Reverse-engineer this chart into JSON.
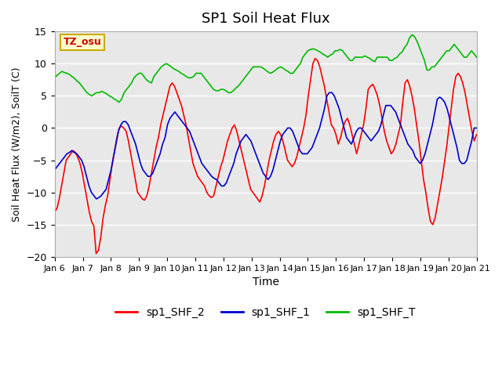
{
  "title": "SP1 Soil Heat Flux",
  "xlabel": "Time",
  "ylabel": "Soil Heat Flux (W/m2), SoilT (C)",
  "ylim": [
    -20,
    15
  ],
  "xlim": [
    0,
    15
  ],
  "background_color": "#ffffff",
  "plot_bg_color": "#e8e8e8",
  "grid_color": "#ffffff",
  "tz_label": "TZ_osu",
  "tz_bg": "#ffffcc",
  "tz_border": "#ccaa00",
  "tz_text_color": "#cc0000",
  "legend_labels": [
    "sp1_SHF_2",
    "sp1_SHF_1",
    "sp1_SHF_T"
  ],
  "legend_colors": [
    "#ff0000",
    "#0000cc",
    "#00bb00"
  ],
  "x_tick_labels": [
    "Jan 6",
    "Jan 7",
    "Jan 8",
    "Jan 9",
    "Jan 10",
    "Jan 11",
    "Jan 12",
    "Jan 13",
    "Jan 14",
    "Jan 15",
    "Jan 16",
    "Jan 17",
    "Jan 18",
    "Jan 19",
    "Jan 20",
    "Jan 21"
  ],
  "shf2_y": [
    -13.0,
    -12.5,
    -11.0,
    -9.0,
    -7.0,
    -5.0,
    -4.5,
    -4.0,
    -3.5,
    -3.8,
    -4.5,
    -5.5,
    -7.0,
    -9.0,
    -11.0,
    -13.0,
    -14.5,
    -15.2,
    -19.5,
    -19.0,
    -17.0,
    -14.0,
    -12.0,
    -10.5,
    -8.0,
    -5.5,
    -3.5,
    -1.5,
    0.0,
    0.3,
    0.0,
    -0.5,
    -2.0,
    -4.0,
    -6.0,
    -8.0,
    -10.0,
    -10.5,
    -11.0,
    -11.2,
    -10.5,
    -9.0,
    -7.0,
    -5.0,
    -3.0,
    -1.5,
    0.5,
    2.0,
    3.5,
    5.0,
    6.5,
    7.0,
    6.5,
    5.5,
    4.5,
    3.5,
    2.0,
    0.5,
    -1.5,
    -3.5,
    -5.5,
    -6.5,
    -7.5,
    -8.0,
    -8.5,
    -9.0,
    -10.0,
    -10.5,
    -10.8,
    -10.5,
    -9.0,
    -7.5,
    -6.0,
    -5.0,
    -3.5,
    -2.0,
    -1.0,
    0.0,
    0.5,
    -0.5,
    -2.0,
    -3.5,
    -5.0,
    -6.5,
    -8.0,
    -9.5,
    -10.0,
    -10.5,
    -11.0,
    -11.5,
    -10.5,
    -9.0,
    -7.0,
    -5.0,
    -3.5,
    -2.0,
    -1.0,
    -0.5,
    -1.0,
    -2.0,
    -3.5,
    -5.0,
    -5.5,
    -6.0,
    -5.5,
    -4.5,
    -3.0,
    -1.5,
    0.0,
    2.0,
    5.0,
    7.5,
    10.0,
    10.8,
    10.5,
    9.5,
    8.0,
    6.5,
    4.5,
    2.5,
    0.5,
    0.0,
    -1.0,
    -2.5,
    -1.5,
    0.0,
    1.0,
    1.5,
    0.5,
    -1.0,
    -2.5,
    -4.0,
    -2.5,
    -1.0,
    0.5,
    3.0,
    6.0,
    6.5,
    6.8,
    6.0,
    5.0,
    3.5,
    1.5,
    -0.5,
    -2.0,
    -3.0,
    -4.0,
    -3.5,
    -2.5,
    -1.0,
    0.5,
    4.0,
    7.0,
    7.5,
    6.5,
    5.0,
    3.0,
    0.5,
    -2.0,
    -5.0,
    -8.0,
    -10.0,
    -12.5,
    -14.5,
    -15.0,
    -14.0,
    -12.0,
    -10.0,
    -8.0,
    -5.5,
    -3.0,
    0.0,
    3.0,
    6.0,
    8.0,
    8.5,
    8.0,
    7.0,
    5.5,
    3.5,
    1.5,
    -0.5,
    -2.0,
    -1.0
  ],
  "shf1_y": [
    -6.5,
    -6.0,
    -5.5,
    -5.0,
    -4.5,
    -4.0,
    -3.8,
    -3.5,
    -3.8,
    -4.0,
    -4.5,
    -5.0,
    -6.0,
    -7.5,
    -9.0,
    -10.0,
    -10.5,
    -11.0,
    -10.8,
    -10.5,
    -10.0,
    -9.5,
    -8.0,
    -6.5,
    -4.5,
    -2.5,
    -0.5,
    0.5,
    1.0,
    1.0,
    0.5,
    -0.5,
    -1.5,
    -2.5,
    -4.0,
    -5.5,
    -6.5,
    -7.0,
    -7.5,
    -7.5,
    -7.0,
    -6.0,
    -5.0,
    -4.0,
    -2.5,
    -1.5,
    0.5,
    1.5,
    2.0,
    2.5,
    2.0,
    1.5,
    1.0,
    0.5,
    0.0,
    -0.5,
    -1.5,
    -2.5,
    -3.5,
    -4.5,
    -5.5,
    -6.0,
    -6.5,
    -7.0,
    -7.5,
    -7.8,
    -8.0,
    -8.5,
    -9.0,
    -9.0,
    -8.5,
    -7.5,
    -6.5,
    -5.5,
    -4.0,
    -3.0,
    -2.0,
    -1.5,
    -1.0,
    -1.5,
    -2.0,
    -3.0,
    -4.0,
    -5.0,
    -6.0,
    -7.0,
    -7.5,
    -8.0,
    -7.5,
    -6.5,
    -5.0,
    -3.5,
    -2.0,
    -1.0,
    -0.5,
    0.0,
    0.0,
    -0.5,
    -1.5,
    -2.5,
    -3.5,
    -4.0,
    -4.0,
    -4.0,
    -3.5,
    -3.0,
    -2.0,
    -1.0,
    0.0,
    1.5,
    3.0,
    5.0,
    5.5,
    5.5,
    5.0,
    4.0,
    3.0,
    1.5,
    0.0,
    -1.5,
    -2.0,
    -2.5,
    -1.5,
    -0.5,
    0.0,
    0.0,
    -0.5,
    -1.0,
    -1.5,
    -2.0,
    -1.5,
    -1.0,
    -0.5,
    0.5,
    2.0,
    3.5,
    3.5,
    3.5,
    3.0,
    2.5,
    1.5,
    0.5,
    -0.5,
    -1.5,
    -2.5,
    -3.0,
    -3.5,
    -4.5,
    -5.0,
    -5.5,
    -5.0,
    -4.0,
    -2.5,
    -1.0,
    0.5,
    2.5,
    4.5,
    4.8,
    4.5,
    4.0,
    3.0,
    1.5,
    0.0,
    -1.5,
    -3.0,
    -5.0,
    -5.5,
    -5.5,
    -5.0,
    -3.5,
    -2.0,
    0.0,
    0.0
  ],
  "shfT_y": [
    7.8,
    8.2,
    8.5,
    8.8,
    8.6,
    8.5,
    8.3,
    8.0,
    7.7,
    7.3,
    7.0,
    6.5,
    6.0,
    5.5,
    5.2,
    5.0,
    5.3,
    5.5,
    5.5,
    5.7,
    5.5,
    5.3,
    5.0,
    4.8,
    4.5,
    4.3,
    4.0,
    4.5,
    5.5,
    6.0,
    6.5,
    7.0,
    7.8,
    8.2,
    8.5,
    8.5,
    8.0,
    7.5,
    7.2,
    7.0,
    8.0,
    8.5,
    9.0,
    9.5,
    9.8,
    10.0,
    9.8,
    9.5,
    9.2,
    9.0,
    8.8,
    8.5,
    8.3,
    8.0,
    7.8,
    7.8,
    8.0,
    8.5,
    8.5,
    8.5,
    8.0,
    7.5,
    7.0,
    6.5,
    6.0,
    5.8,
    5.8,
    6.0,
    6.0,
    5.8,
    5.5,
    5.5,
    5.8,
    6.2,
    6.5,
    7.0,
    7.5,
    8.0,
    8.5,
    9.0,
    9.5,
    9.5,
    9.5,
    9.5,
    9.3,
    9.0,
    8.7,
    8.5,
    8.7,
    9.0,
    9.3,
    9.5,
    9.3,
    9.0,
    8.8,
    8.5,
    8.5,
    9.0,
    9.5,
    10.0,
    11.0,
    11.5,
    12.0,
    12.2,
    12.3,
    12.2,
    12.0,
    11.8,
    11.5,
    11.3,
    11.0,
    11.3,
    11.5,
    12.0,
    12.0,
    12.2,
    12.0,
    11.5,
    11.0,
    10.5,
    10.5,
    11.0,
    11.0,
    11.0,
    11.0,
    11.2,
    11.0,
    10.8,
    10.5,
    10.3,
    11.0,
    11.0,
    11.0,
    11.0,
    11.0,
    10.5,
    10.5,
    10.8,
    11.0,
    11.5,
    11.8,
    12.5,
    13.0,
    14.0,
    14.5,
    14.2,
    13.5,
    12.5,
    11.5,
    10.5,
    9.0,
    9.0,
    9.5,
    9.5,
    10.0,
    10.5,
    11.0,
    11.5,
    12.0,
    12.0,
    12.5,
    13.0,
    12.5,
    12.0,
    11.5,
    11.0,
    11.0,
    11.5,
    12.0,
    11.5,
    11.0
  ]
}
